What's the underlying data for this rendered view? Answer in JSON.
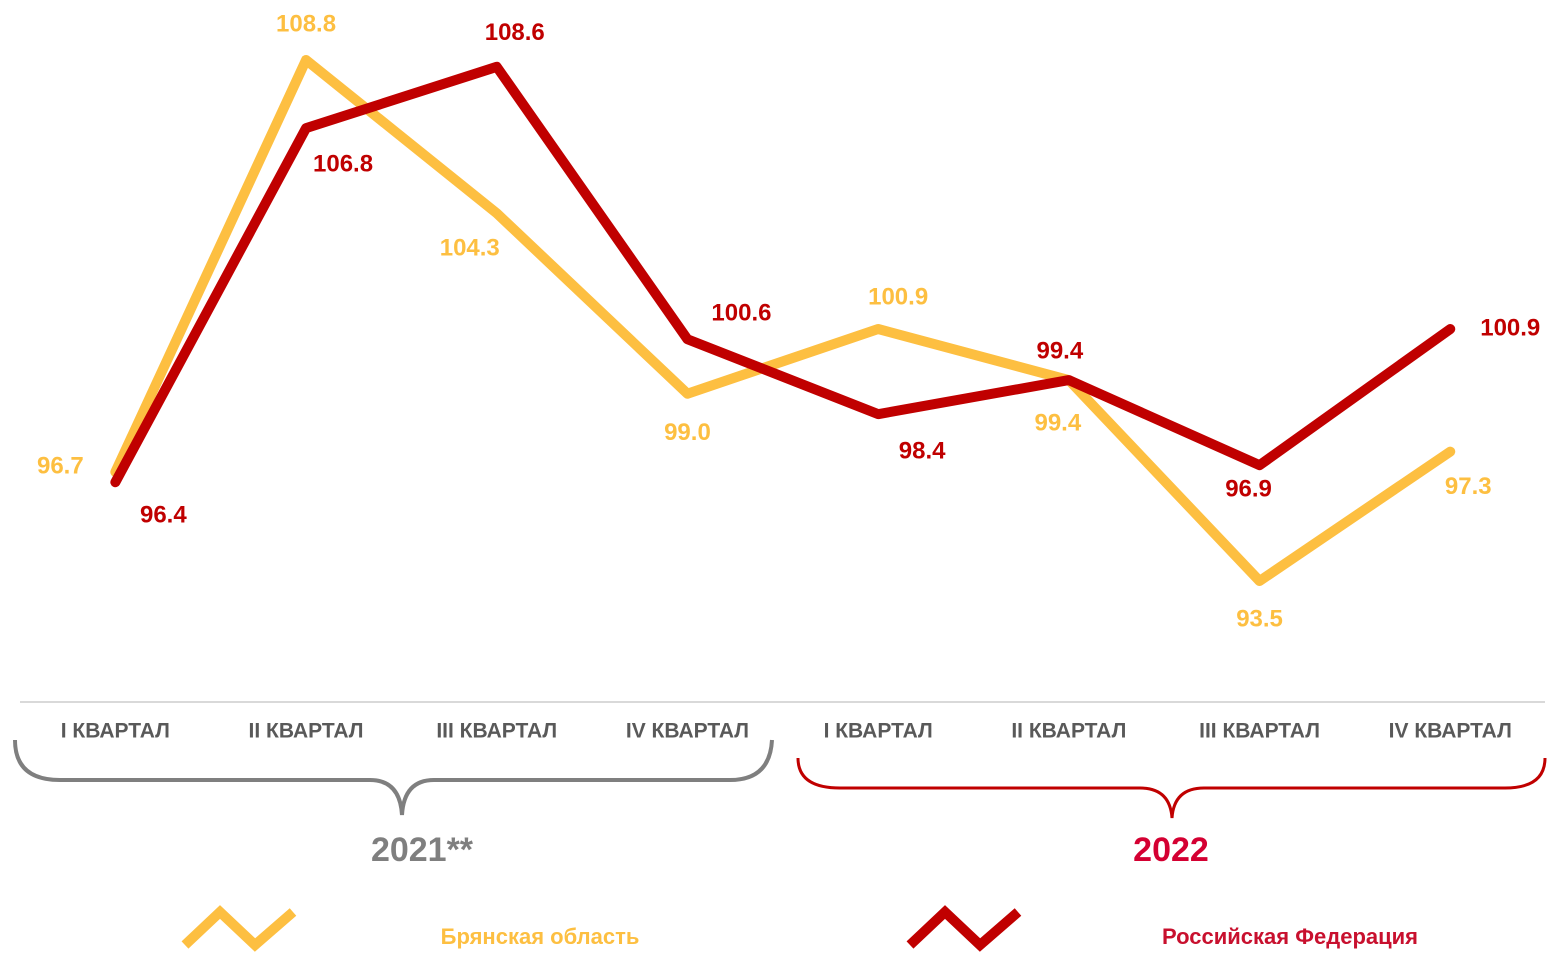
{
  "chart_data": {
    "type": "line",
    "categories": [
      "I КВАРТАЛ",
      "II КВАРТАЛ",
      "III КВАРТАЛ",
      "IV КВАРТАЛ",
      "I КВАРТАЛ",
      "II КВАРТАЛ",
      "III КВАРТАЛ",
      "IV КВАРТАЛ"
    ],
    "groups": [
      {
        "label": "2021**",
        "color": "#7f7f7f"
      },
      {
        "label": "2022",
        "color": "#d40032"
      }
    ],
    "series": [
      {
        "name": "Брянская область",
        "color": "#fdbf41",
        "values": [
          96.7,
          108.8,
          104.3,
          99.0,
          100.9,
          99.4,
          93.5,
          97.3
        ],
        "value_labels": [
          "96.7",
          "108.8",
          "104.3",
          "99.0",
          "100.9",
          "99.4",
          "93.5",
          "97.3"
        ]
      },
      {
        "name": "Российская Федерация",
        "color": "#c00000",
        "values": [
          96.4,
          106.8,
          108.6,
          100.6,
          98.4,
          99.4,
          96.9,
          100.9
        ],
        "value_labels": [
          "96.4",
          "106.8",
          "108.6",
          "100.6",
          "98.4",
          "99.4",
          "96.9",
          "100.9"
        ]
      }
    ]
  }
}
